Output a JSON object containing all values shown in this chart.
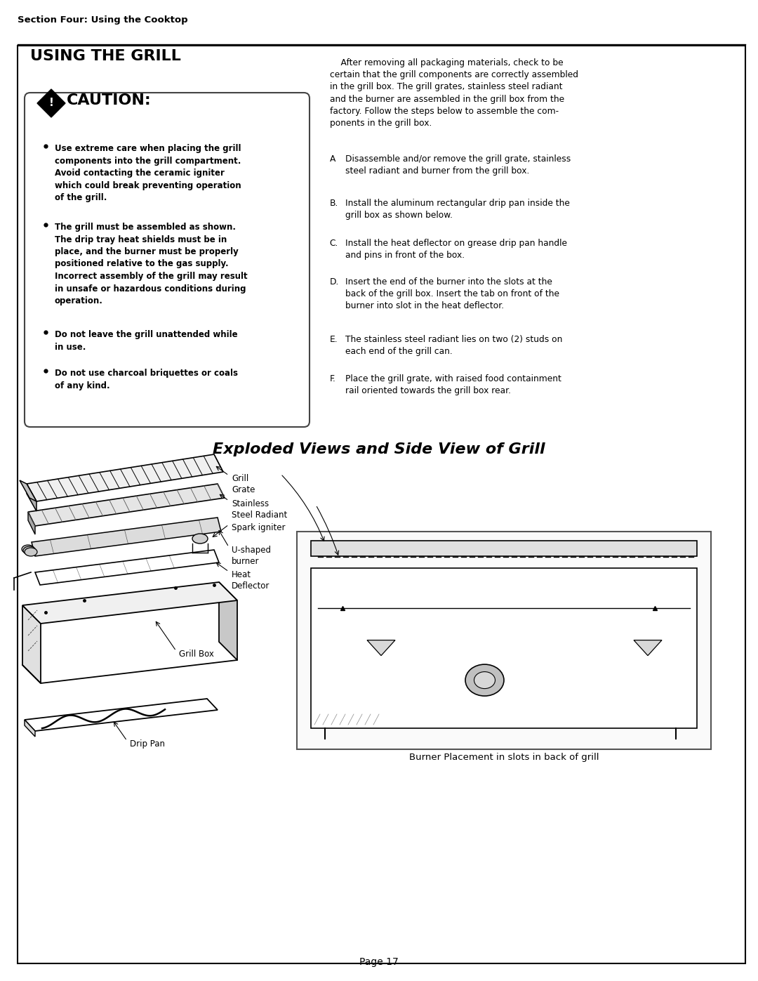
{
  "page_bg": "#ffffff",
  "section_header": "Section Four: Using the Cooktop",
  "main_title": "USING THE GRILL",
  "caution_title": "  CAUTION:",
  "caution_bullets": [
    "Use extreme care when placing the grill\ncomponents into the grill compartment.\nAvoid contacting the ceramic igniter\nwhich could break preventing operation\nof the grill.",
    "The grill must be assembled as shown.\nThe drip tray heat shields must be in\nplace, and the burner must be properly\npositioned relative to the gas supply.\nIncorrect assembly of the grill may result\nin unsafe or hazardous conditions during\noperation.",
    "Do not leave the grill unattended while\nin use.",
    "Do not use charcoal briquettes or coals\nof any kind."
  ],
  "right_para": "    After removing all packaging materials, check to be\ncertain that the grill components are correctly assembled\nin the grill box. The grill grates, stainless steel radiant\nand the burner are assembled in the grill box from the\nfactory. Follow the steps below to assemble the com-\nponents in the grill box.",
  "steps": [
    [
      "A",
      "Disassemble and/or remove the grill grate, stainless\n     steel radiant and burner from the grill box."
    ],
    [
      "B.",
      "Install the aluminum rectangular drip pan inside the\n      grill box as shown below."
    ],
    [
      "C.",
      "Install the heat deflector on grease drip pan handle\n      and pins in front of the box."
    ],
    [
      "D.",
      "Insert the end of the burner into the slots at the\n      back of the grill box. Insert the tab on front of the\n      burner into slot in the heat deflector."
    ],
    [
      "E.",
      "The stainless steel radiant lies on two (2) studs on\n      each end of the grill can."
    ],
    [
      "F.",
      "Place the grill grate, with raised food containment\n      rail oriented towards the grill box rear."
    ]
  ],
  "diagram_title": "Exploded Views and Side View of Grill",
  "side_caption": "Burner Placement in slots in back of grill",
  "page_number": "Page 17"
}
